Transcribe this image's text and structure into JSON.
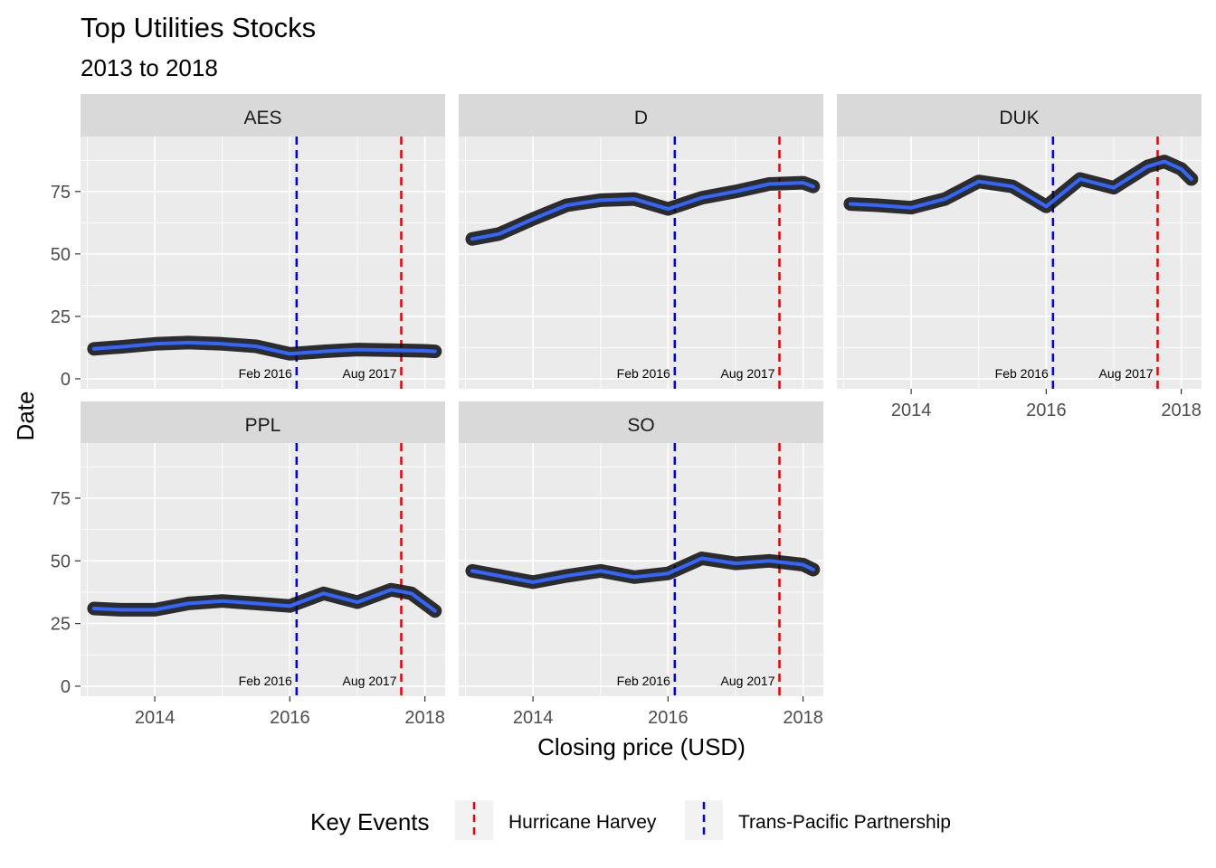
{
  "chart_data": {
    "type": "line",
    "title": "Top Utilities Stocks",
    "subtitle": "2013 to 2018",
    "xlabel": "Closing price (USD)",
    "ylabel": "Date",
    "x_ticks": [
      2014,
      2016,
      2018
    ],
    "y_ticks": [
      0,
      25,
      50,
      75
    ],
    "xlim": [
      2012.9,
      2018.3
    ],
    "ylim": [
      -4,
      97
    ],
    "grid": true,
    "legend": {
      "title": "Key Events",
      "position": "bottom",
      "entries": [
        {
          "label": "Hurricane Harvey",
          "color": "#ee0000",
          "linetype": "dashed"
        },
        {
          "label": "Trans-Pacific Partnership",
          "color": "#0000ee",
          "linetype": "dashed"
        }
      ]
    },
    "events": [
      {
        "name": "Trans-Pacific Partnership",
        "x": 2016.1,
        "label": "Feb 2016",
        "color": "#0000ee"
      },
      {
        "name": "Hurricane Harvey",
        "x": 2017.65,
        "label": "Aug 2017",
        "color": "#ee0000"
      }
    ],
    "panels": [
      {
        "name": "AES",
        "smooth": [
          [
            2013.1,
            12
          ],
          [
            2013.5,
            12.8
          ],
          [
            2014,
            14
          ],
          [
            2014.5,
            14.5
          ],
          [
            2015,
            14
          ],
          [
            2015.5,
            13
          ],
          [
            2016,
            10
          ],
          [
            2016.5,
            11
          ],
          [
            2017,
            11.7
          ],
          [
            2017.5,
            11.5
          ],
          [
            2018,
            11.2
          ],
          [
            2018.15,
            11
          ]
        ]
      },
      {
        "name": "D",
        "smooth": [
          [
            2013.1,
            56
          ],
          [
            2013.5,
            58
          ],
          [
            2014,
            64
          ],
          [
            2014.5,
            69.5
          ],
          [
            2015,
            71.5
          ],
          [
            2015.5,
            72
          ],
          [
            2016,
            68
          ],
          [
            2016.5,
            72.5
          ],
          [
            2017,
            75
          ],
          [
            2017.5,
            78
          ],
          [
            2018,
            78.5
          ],
          [
            2018.15,
            77
          ]
        ]
      },
      {
        "name": "DUK",
        "smooth": [
          [
            2013.1,
            70
          ],
          [
            2013.5,
            69.5
          ],
          [
            2014,
            68.5
          ],
          [
            2014.5,
            72
          ],
          [
            2015,
            79
          ],
          [
            2015.5,
            77
          ],
          [
            2016,
            69
          ],
          [
            2016.5,
            80
          ],
          [
            2017,
            76.5
          ],
          [
            2017.5,
            85
          ],
          [
            2017.75,
            87
          ],
          [
            2018,
            84
          ],
          [
            2018.15,
            80
          ]
        ]
      },
      {
        "name": "PPL",
        "smooth": [
          [
            2013.1,
            31
          ],
          [
            2013.5,
            30.5
          ],
          [
            2014,
            30.5
          ],
          [
            2014.5,
            33
          ],
          [
            2015,
            34
          ],
          [
            2015.5,
            33
          ],
          [
            2016,
            32
          ],
          [
            2016.5,
            37
          ],
          [
            2017,
            33.5
          ],
          [
            2017.5,
            38.5
          ],
          [
            2017.8,
            37
          ],
          [
            2018,
            33
          ],
          [
            2018.15,
            30
          ]
        ]
      },
      {
        "name": "SO",
        "smooth": [
          [
            2013.1,
            46
          ],
          [
            2013.5,
            44
          ],
          [
            2014,
            41.5
          ],
          [
            2014.5,
            44
          ],
          [
            2015,
            46
          ],
          [
            2015.5,
            43.5
          ],
          [
            2016,
            45
          ],
          [
            2016.5,
            51
          ],
          [
            2017,
            49
          ],
          [
            2017.5,
            50
          ],
          [
            2018,
            48.5
          ],
          [
            2018.15,
            46.5
          ]
        ]
      }
    ]
  }
}
